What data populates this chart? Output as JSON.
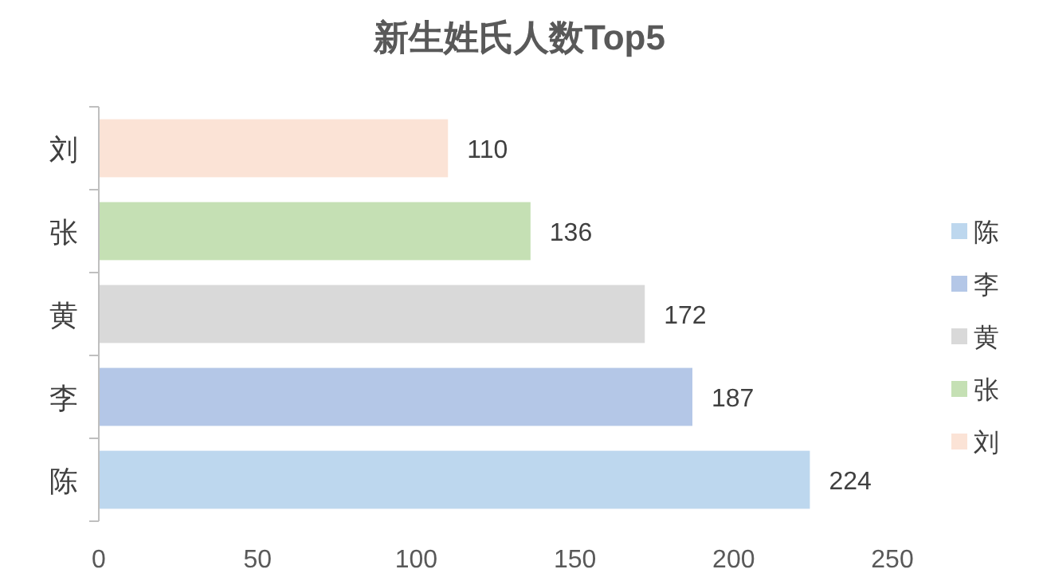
{
  "chart_data": {
    "type": "bar",
    "orientation": "horizontal",
    "stacked": true,
    "title": "新生姓氏人数Top5",
    "categories": [
      "刘",
      "张",
      "黄",
      "李",
      "陈"
    ],
    "series": [
      {
        "name": "陈",
        "color": "#bdd7ee",
        "values": [
          null,
          null,
          null,
          null,
          224
        ]
      },
      {
        "name": "李",
        "color": "#b4c7e7",
        "values": [
          null,
          null,
          null,
          187,
          null
        ]
      },
      {
        "name": "黄",
        "color": "#d9d9d9",
        "values": [
          null,
          null,
          172,
          null,
          null
        ]
      },
      {
        "name": "张",
        "color": "#c5e0b4",
        "values": [
          null,
          136,
          null,
          null,
          null
        ]
      },
      {
        "name": "刘",
        "color": "#fbe3d6",
        "values": [
          110,
          null,
          null,
          null,
          null
        ]
      }
    ],
    "xlim": [
      0,
      250
    ],
    "xticks": [
      0,
      50,
      100,
      150,
      200,
      250
    ],
    "data_labels": true,
    "legend": "right"
  }
}
